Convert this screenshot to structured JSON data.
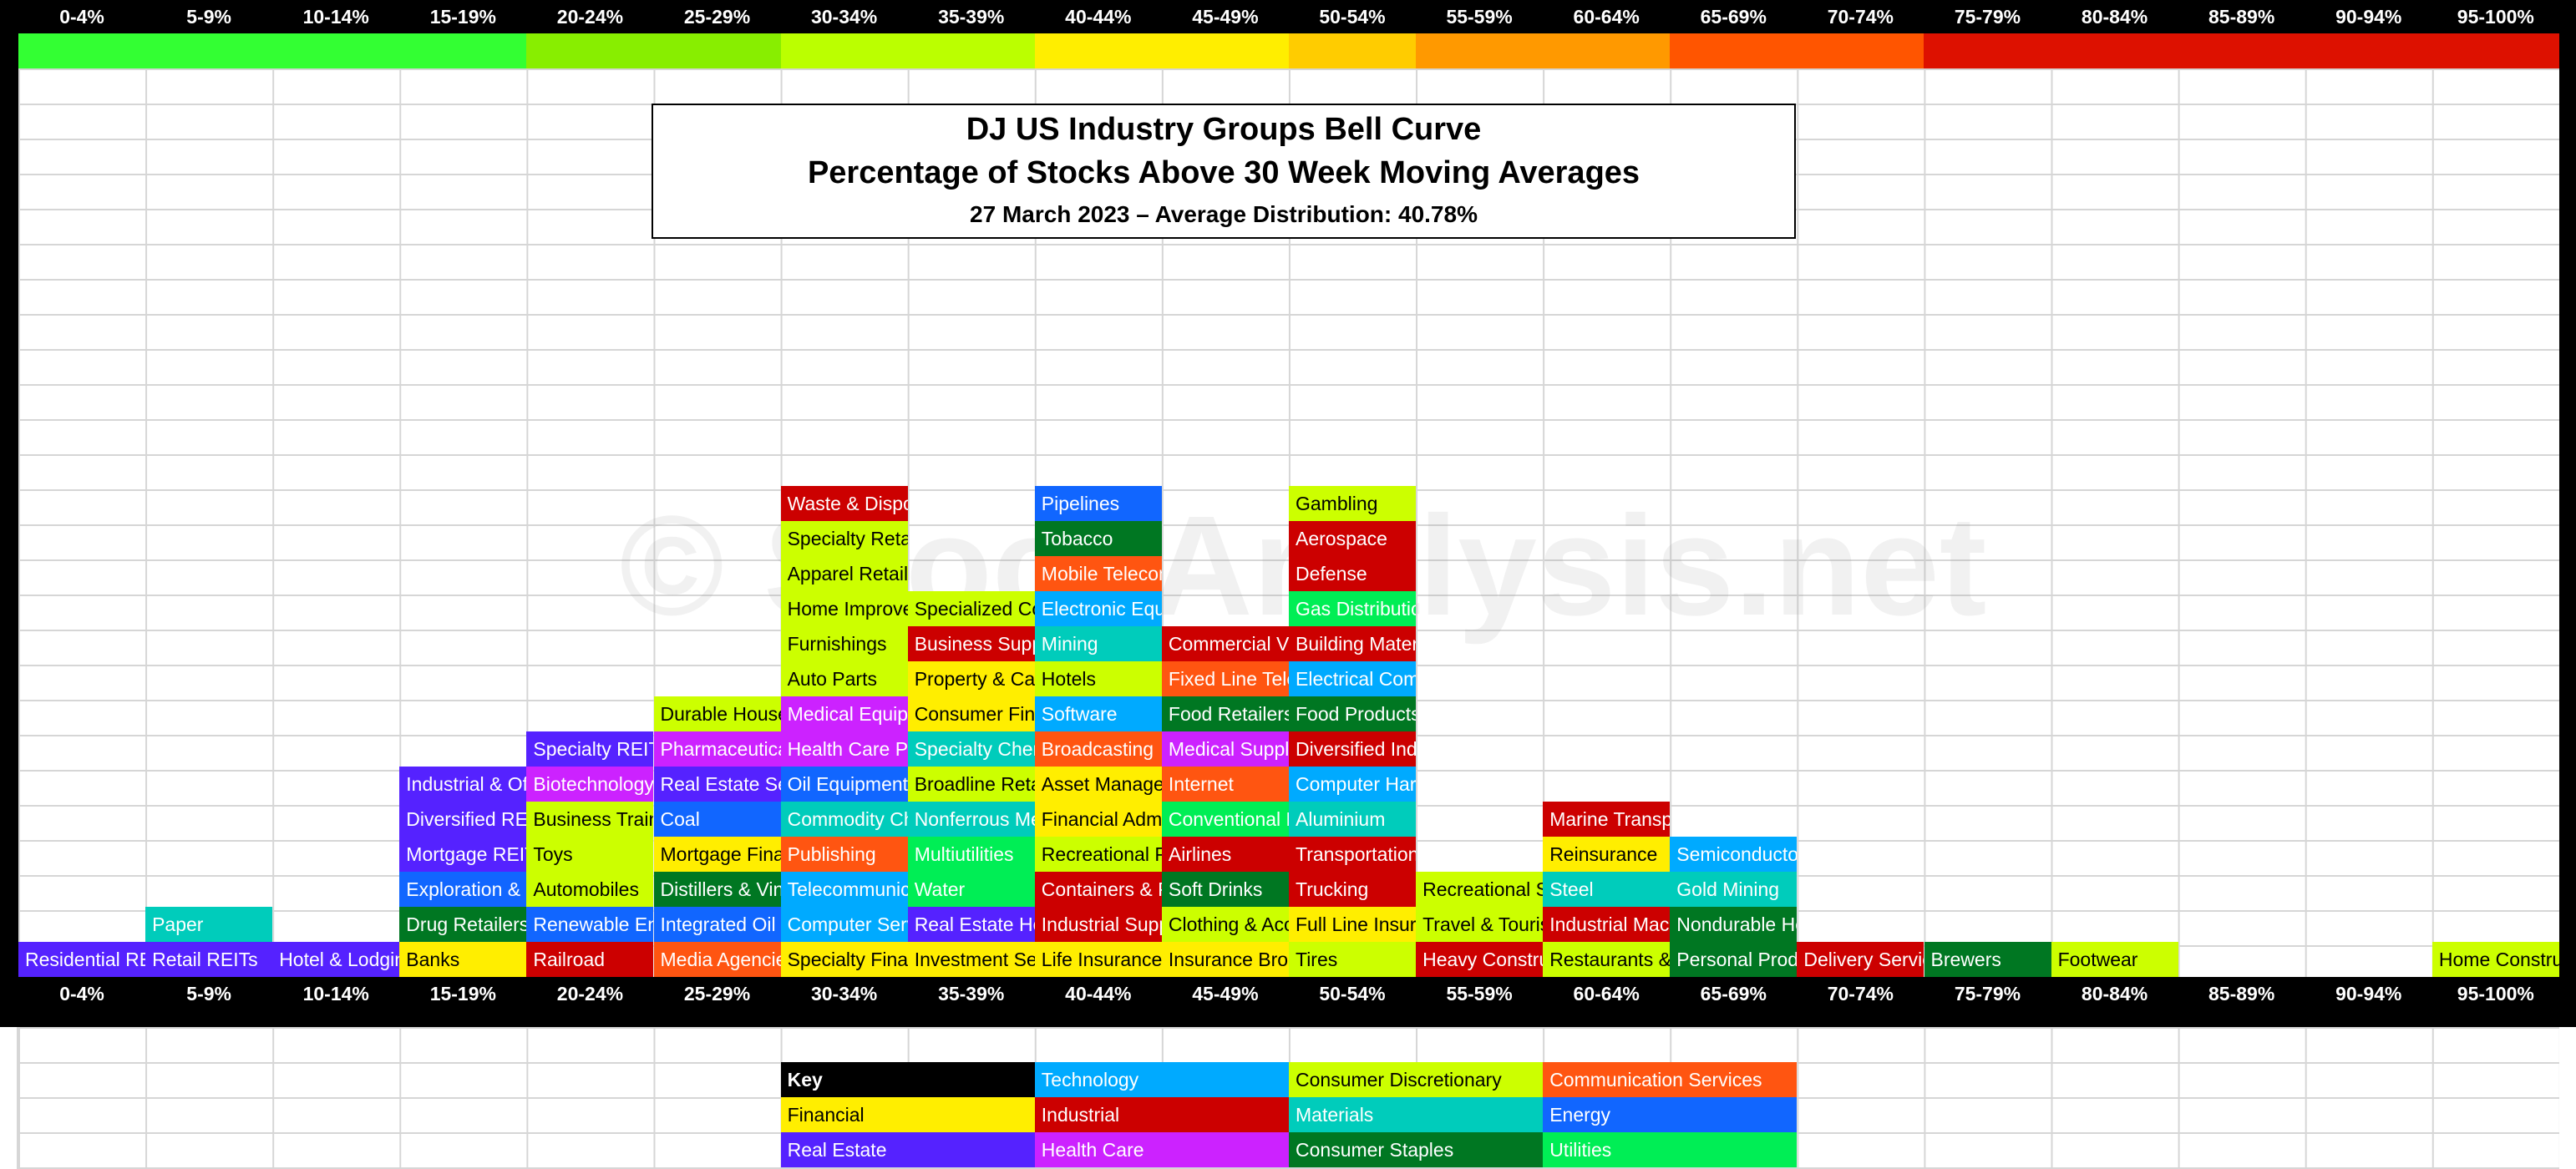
{
  "chart_data": {
    "type": "table",
    "title": "DJ US Industry Groups Bell Curve",
    "subtitle": "Percentage of Stocks Above 30 Week Moving Averages",
    "date_line": "27 March 2023 – Average Distribution: 40.78%",
    "watermark": "© StockAnalysis.net",
    "categories": [
      "0-4%",
      "5-9%",
      "10-14%",
      "15-19%",
      "20-24%",
      "25-29%",
      "30-34%",
      "35-39%",
      "40-44%",
      "45-49%",
      "50-54%",
      "55-59%",
      "60-64%",
      "65-69%",
      "70-74%",
      "75-79%",
      "80-84%",
      "85-89%",
      "90-94%",
      "95-100%"
    ],
    "band_colors": [
      "#33ff33",
      "#33ff33",
      "#33ff33",
      "#33ff33",
      "#88ee00",
      "#88ee00",
      "#bbff00",
      "#bbff00",
      "#ffee00",
      "#ffee00",
      "#ffcc00",
      "#ff9900",
      "#ff9900",
      "#ff5500",
      "#ff5500",
      "#dd1100",
      "#dd1100",
      "#dd1100",
      "#dd1100",
      "#dd1100"
    ],
    "sector_colors": {
      "Financial": "#ffee00",
      "Real Estate": "#5522ff",
      "Technology": "#00aaff",
      "Industrial": "#cc0000",
      "Health Care": "#cc22ff",
      "Consumer Discretionary": "#ccff00",
      "Materials": "#00ccbb",
      "Consumer Staples": "#007722",
      "Communication Services": "#ff5511",
      "Energy": "#1166ff",
      "Utilities": "#00ee55"
    },
    "columns": [
      [
        {
          "name": "Residential REITs",
          "sector": "Real Estate"
        }
      ],
      [
        {
          "name": "Retail REITs",
          "sector": "Real Estate"
        },
        {
          "name": "Paper",
          "sector": "Materials"
        }
      ],
      [
        {
          "name": "Hotel & Lodging REITs",
          "sector": "Real Estate"
        }
      ],
      [
        {
          "name": "Banks",
          "sector": "Financial"
        },
        {
          "name": "Drug Retailers",
          "sector": "Consumer Staples"
        },
        {
          "name": "Exploration & Production",
          "sector": "Energy"
        },
        {
          "name": "Mortgage REITs",
          "sector": "Real Estate"
        },
        {
          "name": "Diversified REITs",
          "sector": "Real Estate"
        },
        {
          "name": "Industrial & Office REITs",
          "sector": "Real Estate"
        }
      ],
      [
        {
          "name": "Railroad",
          "sector": "Industrial"
        },
        {
          "name": "Renewable Energy",
          "sector": "Energy"
        },
        {
          "name": "Automobiles",
          "sector": "Consumer Discretionary"
        },
        {
          "name": "Toys",
          "sector": "Consumer Discretionary"
        },
        {
          "name": "Business Training",
          "sector": "Consumer Discretionary"
        },
        {
          "name": "Biotechnology",
          "sector": "Health Care"
        },
        {
          "name": "Specialty REITs",
          "sector": "Real Estate"
        }
      ],
      [
        {
          "name": "Media Agencies",
          "sector": "Communication Services"
        },
        {
          "name": "Integrated Oil",
          "sector": "Energy"
        },
        {
          "name": "Distillers & Vintners",
          "sector": "Consumer Staples"
        },
        {
          "name": "Mortgage Finance",
          "sector": "Financial"
        },
        {
          "name": "Coal",
          "sector": "Energy"
        },
        {
          "name": "Real Estate Services",
          "sector": "Real Estate"
        },
        {
          "name": "Pharmaceuticals",
          "sector": "Health Care"
        },
        {
          "name": "Durable Household Products",
          "sector": "Consumer Discretionary"
        }
      ],
      [
        {
          "name": "Specialty Finance",
          "sector": "Financial"
        },
        {
          "name": "Computer Services",
          "sector": "Technology"
        },
        {
          "name": "Telecommunications Equipment",
          "sector": "Technology"
        },
        {
          "name": "Publishing",
          "sector": "Communication Services"
        },
        {
          "name": "Commodity Chemicals",
          "sector": "Materials"
        },
        {
          "name": "Oil Equipment",
          "sector": "Energy"
        },
        {
          "name": "Health Care Providers",
          "sector": "Health Care"
        },
        {
          "name": "Medical Equipment",
          "sector": "Health Care"
        },
        {
          "name": "Auto Parts",
          "sector": "Consumer Discretionary"
        },
        {
          "name": "Furnishings",
          "sector": "Consumer Discretionary"
        },
        {
          "name": "Home Improvement",
          "sector": "Consumer Discretionary"
        },
        {
          "name": "Apparel Retailers",
          "sector": "Consumer Discretionary"
        },
        {
          "name": "Specialty Retailers",
          "sector": "Consumer Discretionary"
        },
        {
          "name": "Waste & Disposal",
          "sector": "Industrial"
        }
      ],
      [
        {
          "name": "Investment Services",
          "sector": "Financial"
        },
        {
          "name": "Real Estate Holding",
          "sector": "Real Estate"
        },
        {
          "name": "Water",
          "sector": "Utilities"
        },
        {
          "name": "Multiutilities",
          "sector": "Utilities"
        },
        {
          "name": "Nonferrous Metals",
          "sector": "Materials"
        },
        {
          "name": "Broadline Retailers",
          "sector": "Consumer Discretionary"
        },
        {
          "name": "Specialty Chemicals",
          "sector": "Materials"
        },
        {
          "name": "Consumer Finance",
          "sector": "Financial"
        },
        {
          "name": "Property & Casualty",
          "sector": "Financial"
        },
        {
          "name": "Business Support",
          "sector": "Industrial"
        },
        {
          "name": "Specialized Consumer",
          "sector": "Consumer Discretionary"
        }
      ],
      [
        {
          "name": "Life Insurance",
          "sector": "Financial"
        },
        {
          "name": "Industrial Suppliers",
          "sector": "Industrial"
        },
        {
          "name": "Containers & Packaging",
          "sector": "Industrial"
        },
        {
          "name": "Recreational Products",
          "sector": "Consumer Discretionary"
        },
        {
          "name": "Financial Administration",
          "sector": "Financial"
        },
        {
          "name": "Asset Managers",
          "sector": "Financial"
        },
        {
          "name": "Broadcasting",
          "sector": "Communication Services"
        },
        {
          "name": "Software",
          "sector": "Technology"
        },
        {
          "name": "Hotels",
          "sector": "Consumer Discretionary"
        },
        {
          "name": "Mining",
          "sector": "Materials"
        },
        {
          "name": "Electronic Equipment",
          "sector": "Technology"
        },
        {
          "name": "Mobile Telecommunications",
          "sector": "Communication Services"
        },
        {
          "name": "Tobacco",
          "sector": "Consumer Staples"
        },
        {
          "name": "Pipelines",
          "sector": "Energy"
        }
      ],
      [
        {
          "name": "Insurance Brokers",
          "sector": "Financial"
        },
        {
          "name": "Clothing & Accessories",
          "sector": "Consumer Discretionary"
        },
        {
          "name": "Soft Drinks",
          "sector": "Consumer Staples"
        },
        {
          "name": "Airlines",
          "sector": "Industrial"
        },
        {
          "name": "Conventional Electricity",
          "sector": "Utilities"
        },
        {
          "name": "Internet",
          "sector": "Communication Services"
        },
        {
          "name": "Medical Supplies",
          "sector": "Health Care"
        },
        {
          "name": "Food Retailers",
          "sector": "Consumer Staples"
        },
        {
          "name": "Fixed Line Telecommunications",
          "sector": "Communication Services"
        },
        {
          "name": "Commercial Vehicles",
          "sector": "Industrial"
        }
      ],
      [
        {
          "name": "Tires",
          "sector": "Consumer Discretionary"
        },
        {
          "name": "Full Line Insurance",
          "sector": "Financial"
        },
        {
          "name": "Trucking",
          "sector": "Industrial"
        },
        {
          "name": "Transportation Services",
          "sector": "Industrial"
        },
        {
          "name": "Aluminium",
          "sector": "Materials"
        },
        {
          "name": "Computer Hardware",
          "sector": "Technology"
        },
        {
          "name": "Diversified Industrials",
          "sector": "Industrial"
        },
        {
          "name": "Food Products",
          "sector": "Consumer Staples"
        },
        {
          "name": "Electrical Components",
          "sector": "Technology"
        },
        {
          "name": "Building Materials",
          "sector": "Industrial"
        },
        {
          "name": "Gas Distribution",
          "sector": "Utilities"
        },
        {
          "name": "Defense",
          "sector": "Industrial"
        },
        {
          "name": "Aerospace",
          "sector": "Industrial"
        },
        {
          "name": "Gambling",
          "sector": "Consumer Discretionary"
        }
      ],
      [
        {
          "name": "Heavy Construction",
          "sector": "Industrial"
        },
        {
          "name": "Travel & Tourism",
          "sector": "Consumer Discretionary"
        },
        {
          "name": "Recreational Services",
          "sector": "Consumer Discretionary"
        }
      ],
      [
        {
          "name": "Restaurants & Bars",
          "sector": "Consumer Discretionary"
        },
        {
          "name": "Industrial Machinery",
          "sector": "Industrial"
        },
        {
          "name": "Steel",
          "sector": "Materials"
        },
        {
          "name": "Reinsurance",
          "sector": "Financial"
        },
        {
          "name": "Marine Transportation",
          "sector": "Industrial"
        }
      ],
      [
        {
          "name": "Personal Products",
          "sector": "Consumer Staples"
        },
        {
          "name": "Nondurable Household Products",
          "sector": "Consumer Staples"
        },
        {
          "name": "Gold Mining",
          "sector": "Materials"
        },
        {
          "name": "Semiconductors",
          "sector": "Technology"
        }
      ],
      [
        {
          "name": "Delivery Services",
          "sector": "Industrial"
        }
      ],
      [
        {
          "name": "Brewers",
          "sector": "Consumer Staples"
        }
      ],
      [
        {
          "name": "Footwear",
          "sector": "Consumer Discretionary"
        }
      ],
      [],
      [],
      [
        {
          "name": "Home Construction",
          "sector": "Consumer Discretionary"
        }
      ]
    ],
    "key": {
      "label": "Key",
      "items": [
        "Technology",
        "Consumer Discretionary",
        "Communication Services",
        "Financial",
        "Industrial",
        "Materials",
        "Energy",
        "Real Estate",
        "Health Care",
        "Consumer Staples",
        "Utilities"
      ]
    }
  }
}
